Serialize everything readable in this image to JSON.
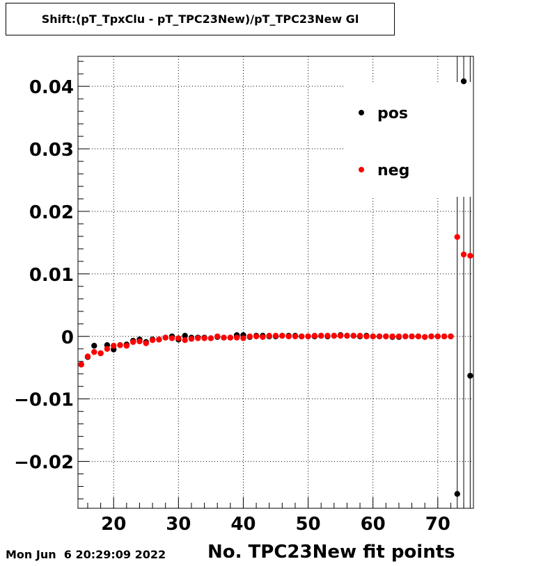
{
  "chart_data": {
    "type": "scatter",
    "title": "Shift:(pT_TpxClu - pT_TPC23New)/pT_TPC23New Gl",
    "xlabel": "No. TPC23New fit points",
    "ylabel": "",
    "xlim": [
      14.5,
      75.5
    ],
    "ylim": [
      -0.0275,
      0.0448
    ],
    "xticks": [
      "20",
      "30",
      "40",
      "50",
      "60",
      "70"
    ],
    "xtick_values": [
      20,
      30,
      40,
      50,
      60,
      70
    ],
    "yticks": [
      "0.04",
      "0.03",
      "0.02",
      "0.01",
      "0",
      "−0.01",
      "−0.02"
    ],
    "ytick_values": [
      0.04,
      0.03,
      0.02,
      0.01,
      0,
      -0.01,
      -0.02
    ],
    "grid": true,
    "legend_position": "top-right",
    "series": [
      {
        "name": "pos",
        "color": "#000000",
        "x": [
          15,
          16,
          17,
          18,
          19,
          20,
          21,
          22,
          23,
          24,
          25,
          26,
          27,
          28,
          29,
          30,
          31,
          32,
          33,
          34,
          35,
          36,
          37,
          38,
          39,
          40,
          41,
          42,
          43,
          44,
          45,
          46,
          47,
          48,
          49,
          50,
          51,
          52,
          53,
          54,
          55,
          56,
          57,
          58,
          59,
          60,
          61,
          62,
          63,
          64,
          65,
          66,
          67,
          68,
          69,
          70,
          71,
          72,
          73,
          74,
          75
        ],
        "y": [
          -0.0045,
          -0.0033,
          -0.0015,
          -0.0027,
          -0.0014,
          -0.0021,
          -0.0014,
          -0.0013,
          -0.0007,
          -0.0005,
          -0.0009,
          -0.0005,
          -0.0005,
          -0.0002,
          0.0,
          -0.0005,
          0.0001,
          -0.0002,
          -0.0002,
          -0.0002,
          -0.0003,
          -0.0001,
          -0.0002,
          -0.0002,
          0.0002,
          0.0002,
          -0.0001,
          0.0001,
          0.0001,
          0.0,
          0.0,
          0.0001,
          0.0001,
          0.0001,
          0.0,
          0.0,
          0.0,
          0.0001,
          0.0,
          0.0001,
          0.0002,
          0.0001,
          0.0001,
          0.0,
          0.0001,
          0.0,
          0.0,
          0.0,
          -0.0001,
          -0.0001,
          0.0,
          0.0,
          0.0,
          -0.0001,
          0.0,
          0.0,
          0.0,
          0.0,
          -0.0252,
          0.0408,
          -0.0063
        ]
      },
      {
        "name": "neg",
        "color": "#ff0000",
        "x": [
          15,
          16,
          17,
          18,
          19,
          20,
          21,
          22,
          23,
          24,
          25,
          26,
          27,
          28,
          29,
          30,
          31,
          32,
          33,
          34,
          35,
          36,
          37,
          38,
          39,
          40,
          41,
          42,
          43,
          44,
          45,
          46,
          47,
          48,
          49,
          50,
          51,
          52,
          53,
          54,
          55,
          56,
          57,
          58,
          59,
          60,
          61,
          62,
          63,
          64,
          65,
          66,
          67,
          68,
          69,
          70,
          71,
          72,
          73,
          74,
          75
        ],
        "y": [
          -0.0045,
          -0.0032,
          -0.0025,
          -0.0027,
          -0.002,
          -0.0015,
          -0.0014,
          -0.0015,
          -0.0009,
          -0.0008,
          -0.0011,
          -0.0006,
          -0.0005,
          -0.0002,
          -0.0003,
          -0.0003,
          -0.0006,
          -0.0004,
          -0.0003,
          -0.0003,
          -0.0003,
          0.0,
          -0.0002,
          -0.0002,
          -0.0002,
          -0.0003,
          0.0,
          0.0,
          -0.0001,
          0.0001,
          0.0001,
          0.0001,
          0.0,
          0.0,
          0.0,
          0.0,
          0.0001,
          0.0001,
          0.0001,
          0.0001,
          0.0001,
          0.0001,
          0.0001,
          0.0001,
          0.0,
          0.0,
          0.0,
          0.0,
          0.0,
          0.0,
          0.0,
          0.0,
          0.0,
          -0.0001,
          0.0,
          0.0,
          0.0,
          0.0,
          0.0159,
          0.0131,
          0.0129
        ]
      }
    ],
    "error_bars": {
      "description": "large vertical error bars at x = 73, 74, 75 spanning the full y range"
    },
    "footer_date": "Mon Jun  6 20:29:09 2022"
  }
}
